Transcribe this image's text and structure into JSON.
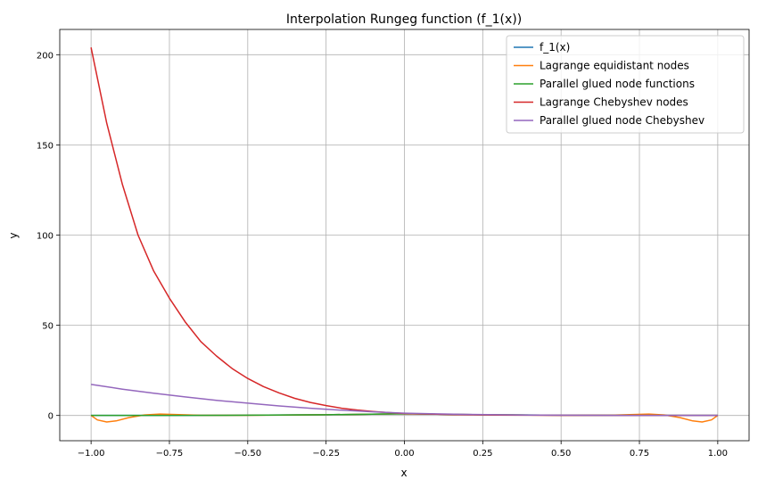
{
  "chart_data": {
    "type": "line",
    "title": "Interpolation Rungeg function (f_1(x))",
    "xlabel": "x",
    "ylabel": "y",
    "xlim": [
      -1.1,
      1.1
    ],
    "ylim": [
      -14,
      214
    ],
    "grid": true,
    "legend_position": "top-right",
    "xticks": [
      -1.0,
      -0.75,
      -0.5,
      -0.25,
      0.0,
      0.25,
      0.5,
      0.75,
      1.0
    ],
    "xtick_labels": [
      "−1.00",
      "−0.75",
      "−0.50",
      "−0.25",
      "0.00",
      "0.25",
      "0.50",
      "0.75",
      "1.00"
    ],
    "yticks": [
      0,
      50,
      100,
      150,
      200
    ],
    "ytick_labels": [
      "0",
      "50",
      "100",
      "150",
      "200"
    ],
    "series": [
      {
        "name": "f_1(x)",
        "color": "#1f77b4",
        "x": [
          -1.0,
          -0.75,
          -0.5,
          -0.25,
          0.0,
          0.25,
          0.5,
          0.75,
          1.0
        ],
        "y": [
          0.04,
          0.07,
          0.14,
          0.39,
          1.0,
          0.39,
          0.14,
          0.07,
          0.04
        ]
      },
      {
        "name": "Lagrange equidistant nodes",
        "color": "#ff7f0e",
        "x": [
          -1.0,
          -0.98,
          -0.95,
          -0.92,
          -0.88,
          -0.83,
          -0.78,
          -0.72,
          -0.65,
          -0.5,
          -0.25,
          0.0,
          0.25,
          0.5,
          0.65,
          0.72,
          0.78,
          0.83,
          0.88,
          0.92,
          0.95,
          0.98,
          1.0
        ],
        "y": [
          0.04,
          -2.5,
          -3.6,
          -3.0,
          -1.2,
          0.3,
          0.8,
          0.5,
          0.1,
          0.1,
          0.4,
          1.0,
          0.4,
          0.1,
          0.1,
          0.5,
          0.8,
          0.3,
          -1.2,
          -3.0,
          -3.6,
          -2.5,
          0.04
        ]
      },
      {
        "name": "Parallel glued node functions",
        "color": "#2ca02c",
        "x": [
          -1.0,
          -0.75,
          -0.5,
          -0.25,
          0.0,
          0.25,
          0.5,
          0.75,
          1.0
        ],
        "y": [
          0.04,
          0.07,
          0.14,
          0.39,
          1.0,
          0.39,
          0.14,
          0.07,
          0.04
        ]
      },
      {
        "name": "Lagrange Chebyshev nodes",
        "color": "#d62728",
        "x": [
          -1.0,
          -0.95,
          -0.9,
          -0.85,
          -0.8,
          -0.75,
          -0.7,
          -0.65,
          -0.6,
          -0.55,
          -0.5,
          -0.45,
          -0.4,
          -0.35,
          -0.3,
          -0.25,
          -0.2,
          -0.15,
          -0.1,
          -0.05,
          0.0,
          0.1,
          0.2,
          0.3,
          0.4,
          0.5,
          0.6,
          0.7,
          0.8,
          0.9,
          1.0
        ],
        "y": [
          204,
          162,
          128,
          100,
          80,
          65,
          52,
          41,
          33,
          26,
          20.5,
          16,
          12.5,
          9.5,
          7.2,
          5.5,
          4.0,
          3.0,
          2.2,
          1.6,
          1.1,
          0.7,
          0.4,
          0.25,
          0.15,
          0.1,
          0.08,
          0.06,
          0.05,
          0.04,
          0.04
        ]
      },
      {
        "name": "Parallel glued node Chebyshev",
        "color": "#9467bd",
        "x": [
          -1.0,
          -0.9,
          -0.8,
          -0.7,
          -0.6,
          -0.5,
          -0.4,
          -0.3,
          -0.2,
          -0.1,
          0.0,
          0.1,
          0.2,
          0.3,
          0.4,
          0.5,
          0.6,
          0.7,
          0.8,
          0.9,
          1.0
        ],
        "y": [
          17.2,
          14.6,
          12.3,
          10.3,
          8.4,
          6.8,
          5.3,
          4.0,
          2.9,
          2.0,
          1.3,
          0.9,
          0.6,
          0.4,
          0.25,
          0.15,
          0.1,
          0.07,
          0.05,
          0.04,
          0.04
        ]
      }
    ]
  }
}
